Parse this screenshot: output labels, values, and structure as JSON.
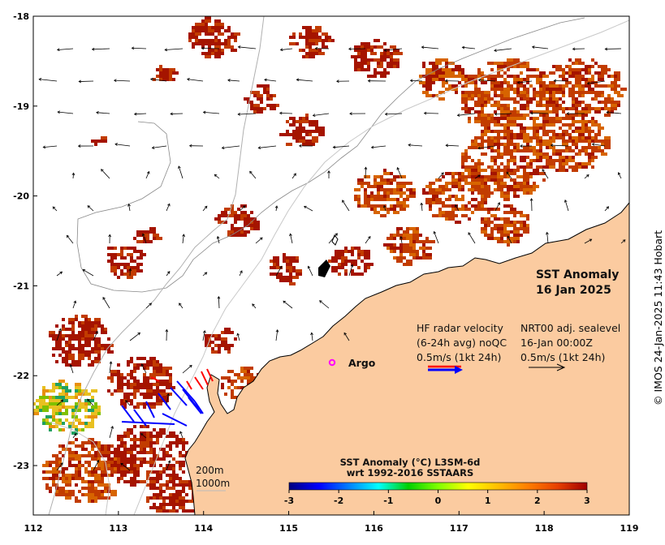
{
  "map": {
    "title": "SST Anomaly",
    "date": "16 Jan 2025",
    "credit": "© IMOS 24-Jan-2025 11:43 Hobart",
    "x_ticks": [
      "112",
      "113",
      "114",
      "115",
      "116",
      "117",
      "118",
      "119"
    ],
    "y_ticks": [
      "-18",
      "-19",
      "-20",
      "-21",
      "-22",
      "-23"
    ],
    "lon_range": [
      112,
      119
    ],
    "lat_range": [
      -23.55,
      -18
    ],
    "land_color": "#fbcba0",
    "coast_color": "#000000",
    "sst_colors": [
      "#a51400",
      "#c23c00",
      "#d76400",
      "#e8900f"
    ]
  },
  "legend": {
    "hf_radar_line1": "HF radar velocity",
    "hf_radar_line2": "(6-24h avg) noQC",
    "hf_radar_line3": "0.5m/s (1kt 24h)",
    "hf_radar_color_primary": "#0000ff",
    "hf_radar_color_secondary": "#ff0000",
    "nrt_line1": "NRT00 adj. sealevel",
    "nrt_line2": "16-Jan 00:00Z",
    "nrt_line3": "0.5m/s (1kt 24h)",
    "argo_label": "Argo",
    "argo_color": "#ff00ff",
    "depth_200": "200m",
    "depth_1000": "1000m"
  },
  "colorbar": {
    "title_line1": "SST Anomaly (°C) L3SM-6d",
    "title_line2": "wrt 1992-2016 SSTAARS",
    "ticks": [
      "-3",
      "-2",
      "-1",
      "0",
      "1",
      "2",
      "3"
    ],
    "range": [
      -3,
      3
    ],
    "colors": [
      "#00007f",
      "#0000ff",
      "#007fff",
      "#00ffff",
      "#00d000",
      "#7fff00",
      "#ffff00",
      "#ffbf00",
      "#ff7f00",
      "#e84000",
      "#a00000"
    ]
  }
}
